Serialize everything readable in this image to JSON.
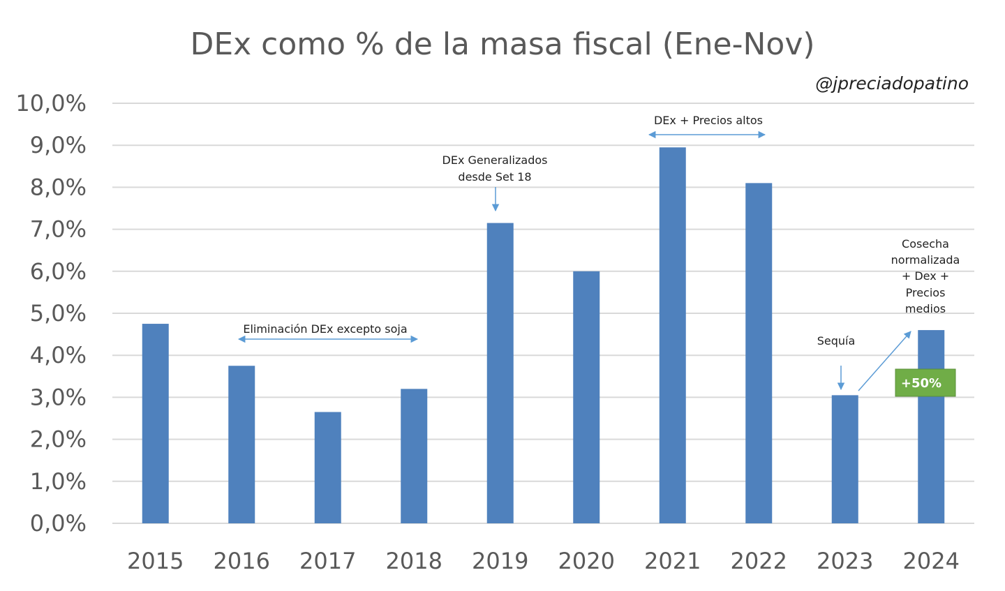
{
  "chart_data": {
    "type": "bar",
    "title": "DEx como % de la masa fiscal (Ene-Nov)",
    "watermark": "@jpreciadopatino",
    "categories": [
      "2015",
      "2016",
      "2017",
      "2018",
      "2019",
      "2020",
      "2021",
      "2022",
      "2023",
      "2024"
    ],
    "values": [
      4.75,
      3.75,
      2.65,
      3.2,
      7.15,
      6.0,
      8.95,
      8.1,
      3.05,
      4.6
    ],
    "ylim": [
      0,
      10
    ],
    "yticks": [
      "0,0%",
      "1,0%",
      "2,0%",
      "3,0%",
      "4,0%",
      "5,0%",
      "6,0%",
      "7,0%",
      "8,0%",
      "9,0%",
      "10,0%"
    ],
    "grid": true,
    "colors": {
      "bar": "#4f81bd",
      "grid": "#d9d9d9",
      "arrow": "#5b9bd5",
      "badge": "#70ad47"
    },
    "annotations": [
      {
        "id": "elim",
        "lines": [
          "Eliminación DEx excepto soja"
        ]
      },
      {
        "id": "gen",
        "lines": [
          "DEx Generalizados",
          "desde Set 18"
        ]
      },
      {
        "id": "precios",
        "lines": [
          "DEx + Precios altos"
        ]
      },
      {
        "id": "sequia",
        "lines": [
          "Sequía"
        ]
      },
      {
        "id": "cosecha",
        "lines": [
          "Cosecha",
          "normalizada",
          "+ Dex +",
          "Precios",
          "medios"
        ]
      }
    ],
    "badge": "+50%"
  }
}
